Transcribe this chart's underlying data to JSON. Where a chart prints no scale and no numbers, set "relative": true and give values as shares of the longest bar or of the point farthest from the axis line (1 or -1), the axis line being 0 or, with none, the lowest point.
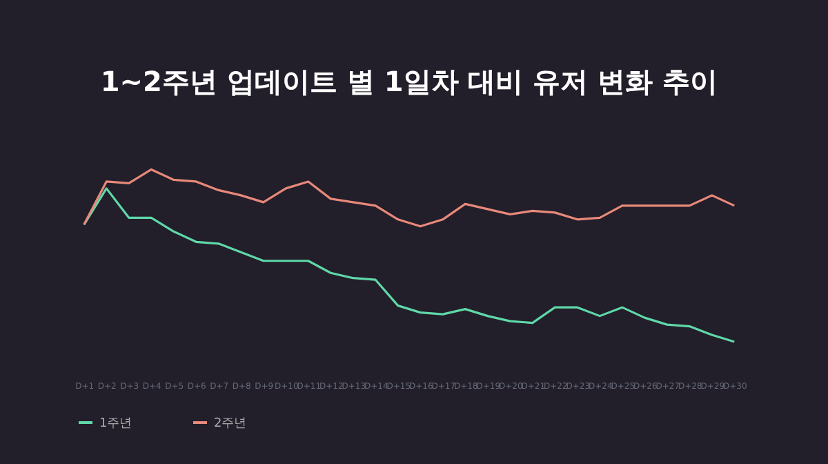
{
  "chart_data": {
    "type": "line",
    "title": "1~2주년 업데이트 별 1일차 대비 유저 변화 추이",
    "relative": true,
    "legend": "bottom",
    "marker": "none",
    "line_style": "solid",
    "categories": [
      "D+1",
      "D+2",
      "D+3",
      "D+4",
      "D+5",
      "D+6",
      "D+7",
      "D+8",
      "D+9",
      "D+10",
      "D+11",
      "D+12",
      "D+13",
      "D+14",
      "D+15",
      "D+16",
      "D+17",
      "D+18",
      "D+19",
      "D+20",
      "D+21",
      "D+22",
      "D+23",
      "D+24",
      "D+25",
      "D+26",
      "D+27",
      "D+28",
      "D+29",
      "D+30"
    ],
    "series": [
      {
        "name": "1주년",
        "color": "#5fd8a8",
        "values": [
          0.68,
          0.89,
          0.72,
          0.72,
          0.64,
          0.58,
          0.57,
          0.52,
          0.47,
          0.47,
          0.47,
          0.4,
          0.37,
          0.36,
          0.21,
          0.17,
          0.16,
          0.19,
          0.15,
          0.12,
          0.11,
          0.2,
          0.2,
          0.15,
          0.2,
          0.14,
          0.1,
          0.09,
          0.04,
          0.0
        ]
      },
      {
        "name": "2주년",
        "color": "#e8897a",
        "values": [
          0.68,
          0.93,
          0.92,
          1.0,
          0.94,
          0.93,
          0.88,
          0.85,
          0.81,
          0.89,
          0.93,
          0.83,
          0.81,
          0.79,
          0.71,
          0.67,
          0.71,
          0.8,
          0.77,
          0.74,
          0.76,
          0.75,
          0.71,
          0.72,
          0.79,
          0.79,
          0.79,
          0.79,
          0.85,
          0.79
        ]
      }
    ]
  }
}
